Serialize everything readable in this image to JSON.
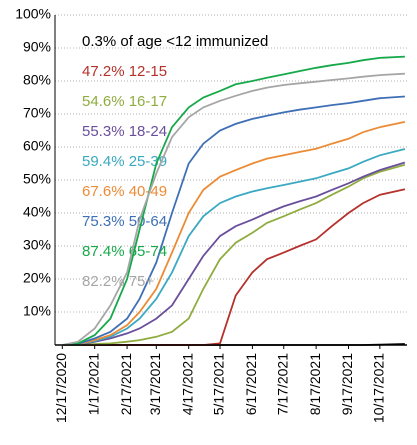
{
  "chart_data": {
    "type": "line",
    "x": [
      "2020-12-17",
      "2021-01-01",
      "2021-01-17",
      "2021-02-01",
      "2021-02-17",
      "2021-03-01",
      "2021-03-17",
      "2021-04-01",
      "2021-04-17",
      "2021-05-01",
      "2021-05-17",
      "2021-06-01",
      "2021-06-17",
      "2021-07-01",
      "2021-07-17",
      "2021-08-01",
      "2021-08-17",
      "2021-09-01",
      "2021-09-17",
      "2021-10-01",
      "2021-10-17",
      "2021-11-10"
    ],
    "xlim": [
      "2020-12-10",
      "2021-11-12"
    ],
    "xticks": [
      {
        "value": "2020-12-17",
        "label": "12/17/2020"
      },
      {
        "value": "2021-01-17",
        "label": "1/17/2021"
      },
      {
        "value": "2021-02-17",
        "label": "2/17/2021"
      },
      {
        "value": "2021-03-17",
        "label": "3/17/2021"
      },
      {
        "value": "2021-04-17",
        "label": "4/17/2021"
      },
      {
        "value": "2021-05-17",
        "label": "5/17/2021"
      },
      {
        "value": "2021-06-17",
        "label": "6/17/2021"
      },
      {
        "value": "2021-07-17",
        "label": "7/17/2021"
      },
      {
        "value": "2021-08-17",
        "label": "8/17/2021"
      },
      {
        "value": "2021-09-17",
        "label": "9/17/2021"
      },
      {
        "value": "2021-10-17",
        "label": "10/17/2021"
      }
    ],
    "ylim": [
      0,
      100
    ],
    "yticks": [
      {
        "value": 10,
        "label": "10%"
      },
      {
        "value": 20,
        "label": "20%"
      },
      {
        "value": 30,
        "label": "30%"
      },
      {
        "value": 40,
        "label": "40%"
      },
      {
        "value": 50,
        "label": "50%"
      },
      {
        "value": 60,
        "label": "60%"
      },
      {
        "value": 70,
        "label": "70%"
      },
      {
        "value": 80,
        "label": "80%"
      },
      {
        "value": 90,
        "label": "90%"
      },
      {
        "value": 100,
        "label": "100%"
      }
    ],
    "grid": true,
    "series": [
      {
        "name": "0.3% of age <12 immunized",
        "color": "#000000",
        "values": [
          0,
          0,
          0,
          0,
          0,
          0,
          0,
          0,
          0,
          0,
          0,
          0,
          0,
          0,
          0,
          0,
          0,
          0,
          0,
          0,
          0.1,
          0.3
        ]
      },
      {
        "name": "47.2% 12-15",
        "color": "#b5312b",
        "values": [
          0,
          0,
          0,
          0,
          0,
          0,
          0,
          0,
          0,
          0,
          0.5,
          15,
          22,
          26,
          28,
          30,
          32,
          36,
          40,
          43,
          45.5,
          47.2
        ]
      },
      {
        "name": "54.6% 16-17",
        "color": "#8fac3f",
        "values": [
          0,
          0,
          0.3,
          0.5,
          1,
          1.5,
          2.5,
          4,
          8,
          17,
          26,
          31,
          34,
          37,
          39,
          41,
          43,
          45.5,
          48,
          50.5,
          52.5,
          54.6
        ]
      },
      {
        "name": "55.3% 18-24",
        "color": "#6a4f9c",
        "values": [
          0,
          0.1,
          1,
          2,
          3.5,
          5,
          8,
          12,
          20,
          27,
          33,
          36,
          38,
          40,
          42,
          43.5,
          45,
          47,
          49,
          51,
          53,
          55.3
        ]
      },
      {
        "name": "59.4% 25-39",
        "color": "#3aa9c1",
        "values": [
          0,
          0.2,
          1.2,
          2.5,
          5,
          8,
          14,
          22,
          33,
          39,
          43,
          45,
          46.5,
          47.5,
          48.5,
          49.5,
          50.5,
          52,
          53.5,
          55.5,
          57.5,
          59.4
        ]
      },
      {
        "name": "67.6% 40-49",
        "color": "#ec8b35",
        "values": [
          0,
          0.2,
          1.5,
          3,
          6,
          10,
          17,
          28,
          40,
          47,
          51,
          53,
          55,
          56.5,
          57.5,
          58.5,
          59.5,
          61,
          62.5,
          64.5,
          66,
          67.6
        ]
      },
      {
        "name": "75.3% 50-64",
        "color": "#3f6fb5",
        "values": [
          0,
          0.3,
          2,
          4,
          8,
          14,
          25,
          40,
          55,
          61,
          65,
          67,
          68.5,
          69.5,
          70.5,
          71.3,
          72,
          72.7,
          73.3,
          74,
          74.8,
          75.3
        ]
      },
      {
        "name": "87.4% 65-74",
        "color": "#16a94a",
        "values": [
          0,
          0.5,
          3,
          8,
          20,
          35,
          55,
          66,
          72,
          75,
          77,
          79,
          80,
          81,
          82,
          83,
          84,
          84.8,
          85.5,
          86.3,
          87,
          87.4
        ]
      },
      {
        "name": "82.2% 75+",
        "color": "#a6a6a6",
        "values": [
          0,
          1,
          5,
          12,
          22,
          38,
          52,
          63,
          69,
          72,
          74,
          75.5,
          77,
          78,
          78.8,
          79.3,
          79.8,
          80.3,
          80.8,
          81.3,
          81.8,
          82.2
        ]
      }
    ]
  }
}
